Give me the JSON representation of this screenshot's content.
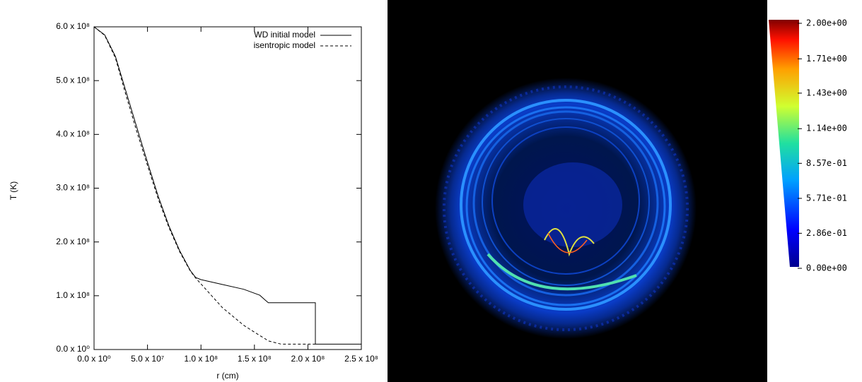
{
  "chart_data": [
    {
      "type": "line",
      "x_label": "r (cm)",
      "y_label": "T (K)",
      "x": [
        0,
        10000000.0,
        20000000.0,
        30000000.0,
        40000000.0,
        50000000.0,
        60000000.0,
        70000000.0,
        80000000.0,
        90000000.0,
        95000000.0,
        100000000.0,
        120000000.0,
        140000000.0,
        155000000.0,
        160000000.0,
        163000000.0,
        175000000.0,
        207000000.0,
        207000000.0,
        250000000.0
      ],
      "series": [
        {
          "name": "WD initial model",
          "color": "#000000",
          "dash": "solid",
          "values": [
            600000000.0,
            585000000.0,
            545000000.0,
            479000000.0,
            413000000.0,
            348000000.0,
            285000000.0,
            230000000.0,
            184000000.0,
            147000000.0,
            134000000.0,
            130000000.0,
            121000000.0,
            112000000.0,
            101000000.0,
            92000000.0,
            87000000.0,
            87000000.0,
            87000000.0,
            10000000.0,
            10000000.0
          ]
        },
        {
          "name": "isentropic model",
          "color": "#000000",
          "dash": "dashed",
          "values": [
            600000000.0,
            584000000.0,
            542000000.0,
            472000000.0,
            405000000.0,
            342000000.0,
            280000000.0,
            227000000.0,
            182000000.0,
            146000000.0,
            133000000.0,
            122000000.0,
            78000000.0,
            45000000.0,
            26000000.0,
            20000000.0,
            16000000.0,
            10000000.0,
            10000000.0,
            null,
            null
          ]
        }
      ],
      "xlim": [
        0,
        250000000.0
      ],
      "ylim": [
        0,
        600000000.0
      ],
      "xticks": [
        {
          "value": 0,
          "label": "0.0 x 10⁰"
        },
        {
          "value": 50000000.0,
          "label": "5.0 x 10⁷"
        },
        {
          "value": 100000000.0,
          "label": "1.0 x 10⁸"
        },
        {
          "value": 150000000.0,
          "label": "1.5 x 10⁸"
        },
        {
          "value": 200000000.0,
          "label": "2.0 x 10⁸"
        },
        {
          "value": 250000000.0,
          "label": "2.5 x 10⁸"
        }
      ],
      "yticks": [
        {
          "value": 0,
          "label": "0.0 x 10⁰"
        },
        {
          "value": 100000000.0,
          "label": "1.0 x 10⁸"
        },
        {
          "value": 200000000.0,
          "label": "2.0 x 10⁸"
        },
        {
          "value": 300000000.0,
          "label": "3.0 x 10⁸"
        },
        {
          "value": 400000000.0,
          "label": "4.0 x 10⁸"
        },
        {
          "value": 500000000.0,
          "label": "5.0 x 10⁸"
        },
        {
          "value": 600000000.0,
          "label": "6.0 x 10⁸"
        }
      ],
      "legend": "top-right",
      "grid": false
    },
    {
      "type": "image",
      "clim": [
        0,
        2
      ],
      "colorbar_ticks": [
        {
          "value": 2.0,
          "label": "2.00e+00"
        },
        {
          "value": 1.71,
          "label": "1.71e+00"
        },
        {
          "value": 1.43,
          "label": "1.43e+00"
        },
        {
          "value": 1.14,
          "label": "1.14e+00"
        },
        {
          "value": 0.857,
          "label": "8.57e-01"
        },
        {
          "value": 0.571,
          "label": "5.71e-01"
        },
        {
          "value": 0.286,
          "label": "2.86e-01"
        },
        {
          "value": 0,
          "label": "0.00e+00"
        }
      ]
    }
  ]
}
